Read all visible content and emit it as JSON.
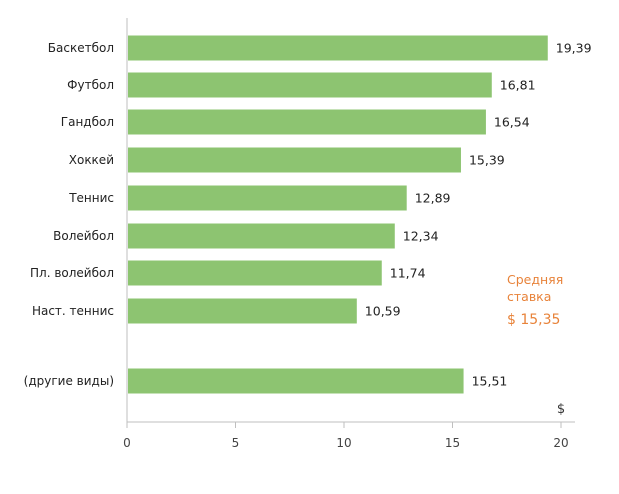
{
  "chart_data": {
    "type": "bar",
    "orientation": "horizontal",
    "categories": [
      "Баскетбол",
      "Футбол",
      "Гандбол",
      "Хоккей",
      "Теннис",
      "Волейбол",
      "Пл. волейбол",
      "Наст. теннис",
      "(другие виды)"
    ],
    "values": [
      19.39,
      16.81,
      16.54,
      15.39,
      12.89,
      12.34,
      11.74,
      10.59,
      15.51
    ],
    "value_labels": [
      "19,39",
      "16,81",
      "16,54",
      "15,39",
      "12,89",
      "12,34",
      "11,74",
      "10,59",
      "15,51"
    ],
    "xlim": [
      0,
      20
    ],
    "x_ticks": [
      0,
      5,
      10,
      15,
      20
    ],
    "x_unit": "$",
    "grid": false,
    "annotation": {
      "title_line1": "Средняя",
      "title_line2": "ставка",
      "value": "$ 15,35"
    },
    "colors": {
      "bar": "#8dc471",
      "annotation": "#e8833a",
      "axis": "#bfbfbf"
    }
  }
}
